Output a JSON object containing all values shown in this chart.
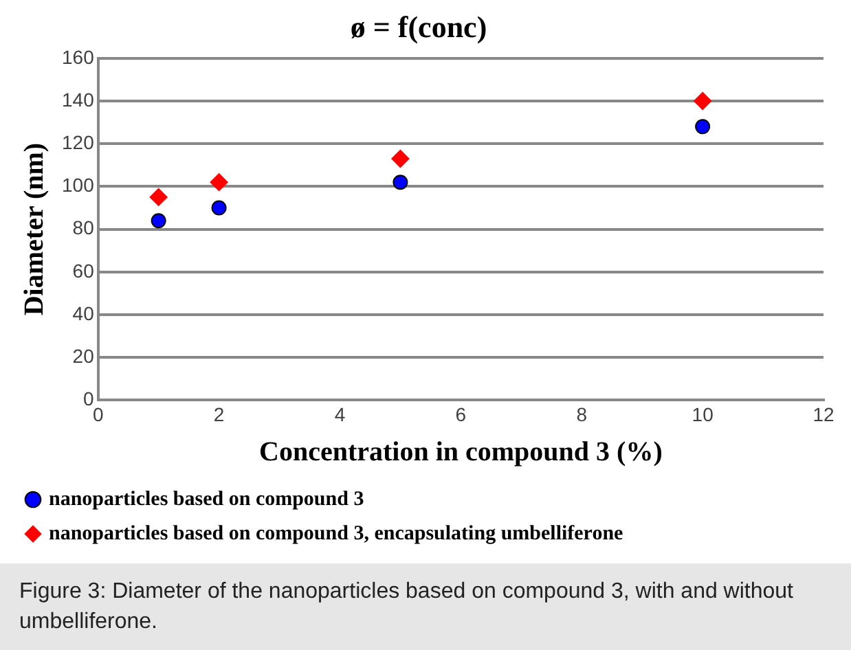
{
  "chart_data": {
    "type": "scatter",
    "title": "ø = f(conc)",
    "xlabel": "Concentration in compound 3 (%)",
    "ylabel": "Diameter (nm)",
    "x": [
      1,
      2,
      5,
      10
    ],
    "series": [
      {
        "name": "nanoparticles based on compound 3",
        "color": "#0000ff",
        "values": [
          84,
          90,
          102,
          128
        ],
        "marker": "circle"
      },
      {
        "name": "nanoparticles based on compound 3, encapsulating umbelliferone",
        "color": "#ff0000",
        "values": [
          95,
          102,
          113,
          140
        ],
        "marker": "diamond"
      }
    ],
    "xlim": [
      0,
      12
    ],
    "xticks": [
      0,
      2,
      4,
      6,
      8,
      10,
      12
    ],
    "ylim": [
      0,
      160
    ],
    "yticks": [
      0,
      20,
      40,
      60,
      80,
      100,
      120,
      140,
      160
    ],
    "grid": "y",
    "legend": "bottom",
    "annotations": [
      "Figure 3: Diameter of the nanoparticles based on compound 3, with and without umbelliferone."
    ]
  }
}
